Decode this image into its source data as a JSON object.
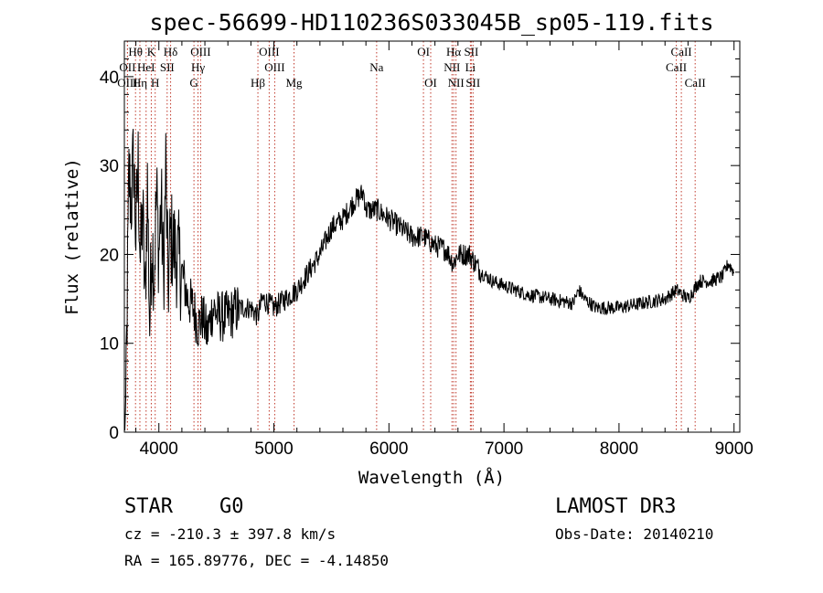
{
  "chart_data": {
    "type": "line",
    "title": "spec-56699-HD110236S033045B_sp05-119.fits",
    "xlabel": "Wavelength (Å)",
    "ylabel": "Flux (relative)",
    "xlim": [
      3700,
      9050
    ],
    "ylim": [
      0,
      44
    ],
    "xticks": [
      4000,
      5000,
      6000,
      7000,
      8000,
      9000
    ],
    "yticks": [
      0,
      10,
      20,
      30,
      40
    ],
    "series": [
      {
        "name": "flux",
        "x": [
          3700,
          3720,
          3740,
          3760,
          3780,
          3800,
          3820,
          3840,
          3860,
          3880,
          3900,
          3920,
          3940,
          3960,
          3980,
          4000,
          4020,
          4040,
          4060,
          4080,
          4100,
          4150,
          4200,
          4250,
          4300,
          4340,
          4380,
          4420,
          4470,
          4520,
          4600,
          4700,
          4800,
          4860,
          4900,
          5000,
          5100,
          5200,
          5300,
          5400,
          5500,
          5600,
          5700,
          5780,
          5800,
          5850,
          5900,
          6000,
          6100,
          6200,
          6300,
          6400,
          6500,
          6560,
          6600,
          6700,
          6800,
          6900,
          7000,
          7200,
          7400,
          7600,
          7650,
          7700,
          7800,
          8000,
          8200,
          8400,
          8500,
          8600,
          8700,
          8800,
          8900,
          8950,
          9000
        ],
        "y": [
          0.5,
          10,
          29,
          26,
          31,
          22,
          30,
          19,
          25,
          14,
          28,
          12,
          22,
          18,
          27,
          20,
          26,
          17,
          30,
          16,
          22,
          20,
          18,
          15,
          14,
          12,
          13,
          11,
          14,
          13,
          13,
          14,
          14,
          13,
          15,
          14,
          15,
          16,
          18,
          20,
          23,
          24,
          26,
          27,
          25,
          25,
          25,
          24,
          23,
          22,
          22,
          21,
          20.5,
          19,
          20,
          20,
          18,
          17,
          16.5,
          15.5,
          15,
          14.5,
          16,
          15,
          14,
          14,
          14.5,
          15,
          16,
          15,
          17,
          17,
          17.5,
          19,
          18
        ]
      }
    ],
    "spectral_lines": [
      {
        "label": "Hθ",
        "wavelength": 3797,
        "row": 1
      },
      {
        "label": "K",
        "wavelength": 3934,
        "row": 1
      },
      {
        "label": "Hδ",
        "wavelength": 4102,
        "row": 1
      },
      {
        "label": "OIII",
        "wavelength": 4363,
        "row": 1
      },
      {
        "label": "OIII",
        "wavelength": 4959,
        "row": 1
      },
      {
        "label": "OI",
        "wavelength": 6300,
        "row": 1
      },
      {
        "label": "Hα",
        "wavelength": 6563,
        "row": 1
      },
      {
        "label": "SII",
        "wavelength": 6716,
        "row": 1
      },
      {
        "label": "CaII",
        "wavelength": 8542,
        "row": 1
      },
      {
        "label": "OII",
        "wavelength": 3727,
        "row": 2
      },
      {
        "label": "HeI",
        "wavelength": 3889,
        "row": 2
      },
      {
        "label": "SII",
        "wavelength": 4072,
        "row": 2
      },
      {
        "label": "Hγ",
        "wavelength": 4340,
        "row": 2
      },
      {
        "label": "OIII",
        "wavelength": 5007,
        "row": 2
      },
      {
        "label": "Na",
        "wavelength": 5893,
        "row": 2
      },
      {
        "label": "NII",
        "wavelength": 6548,
        "row": 2
      },
      {
        "label": "Li",
        "wavelength": 6708,
        "row": 2
      },
      {
        "label": "CaII",
        "wavelength": 8498,
        "row": 2
      },
      {
        "label": "OIII",
        "wavelength": 3727,
        "row": 3
      },
      {
        "label": "Hη",
        "wavelength": 3835,
        "row": 3
      },
      {
        "label": "H",
        "wavelength": 3968,
        "row": 3
      },
      {
        "label": "G",
        "wavelength": 4305,
        "row": 3
      },
      {
        "label": "Hβ",
        "wavelength": 4861,
        "row": 3
      },
      {
        "label": "Mg",
        "wavelength": 5175,
        "row": 3
      },
      {
        "label": "OI",
        "wavelength": 6363,
        "row": 3
      },
      {
        "label": "NII",
        "wavelength": 6583,
        "row": 3
      },
      {
        "label": "SII",
        "wavelength": 6731,
        "row": 3
      },
      {
        "label": "CaII",
        "wavelength": 8662,
        "row": 3
      }
    ]
  },
  "info": {
    "object_class": "STAR",
    "subclass": "G0",
    "survey": "LAMOST DR3",
    "redshift": "cz = -210.3 ± 397.8 km/s",
    "obs_date": "Obs-Date: 20140210",
    "coords": "RA = 165.89776, DEC =  -4.14850"
  }
}
